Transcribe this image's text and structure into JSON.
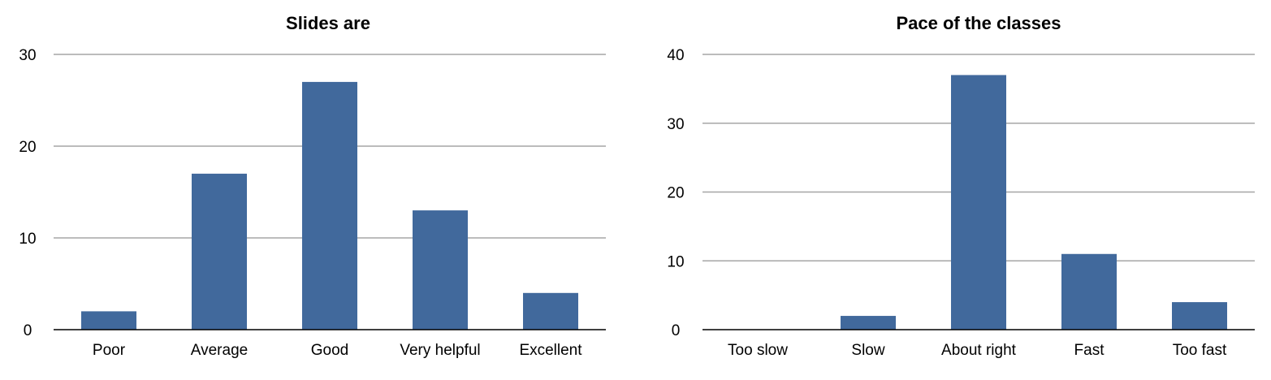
{
  "chart_data": [
    {
      "type": "bar",
      "title": "Slides are",
      "categories": [
        "Poor",
        "Average",
        "Good",
        "Very helpful",
        "Excellent"
      ],
      "values": [
        2,
        17,
        27,
        13,
        4
      ],
      "ylim": [
        0,
        30
      ],
      "yticks": [
        0,
        10,
        20,
        30
      ],
      "grid": true,
      "color": "#41699c"
    },
    {
      "type": "bar",
      "title": "Pace of the classes",
      "categories": [
        "Too slow",
        "Slow",
        "About right",
        "Fast",
        "Too fast"
      ],
      "values": [
        0,
        2,
        37,
        11,
        4
      ],
      "ylim": [
        0,
        40
      ],
      "yticks": [
        0,
        10,
        20,
        30,
        40
      ],
      "grid": true,
      "color": "#41699c"
    }
  ]
}
